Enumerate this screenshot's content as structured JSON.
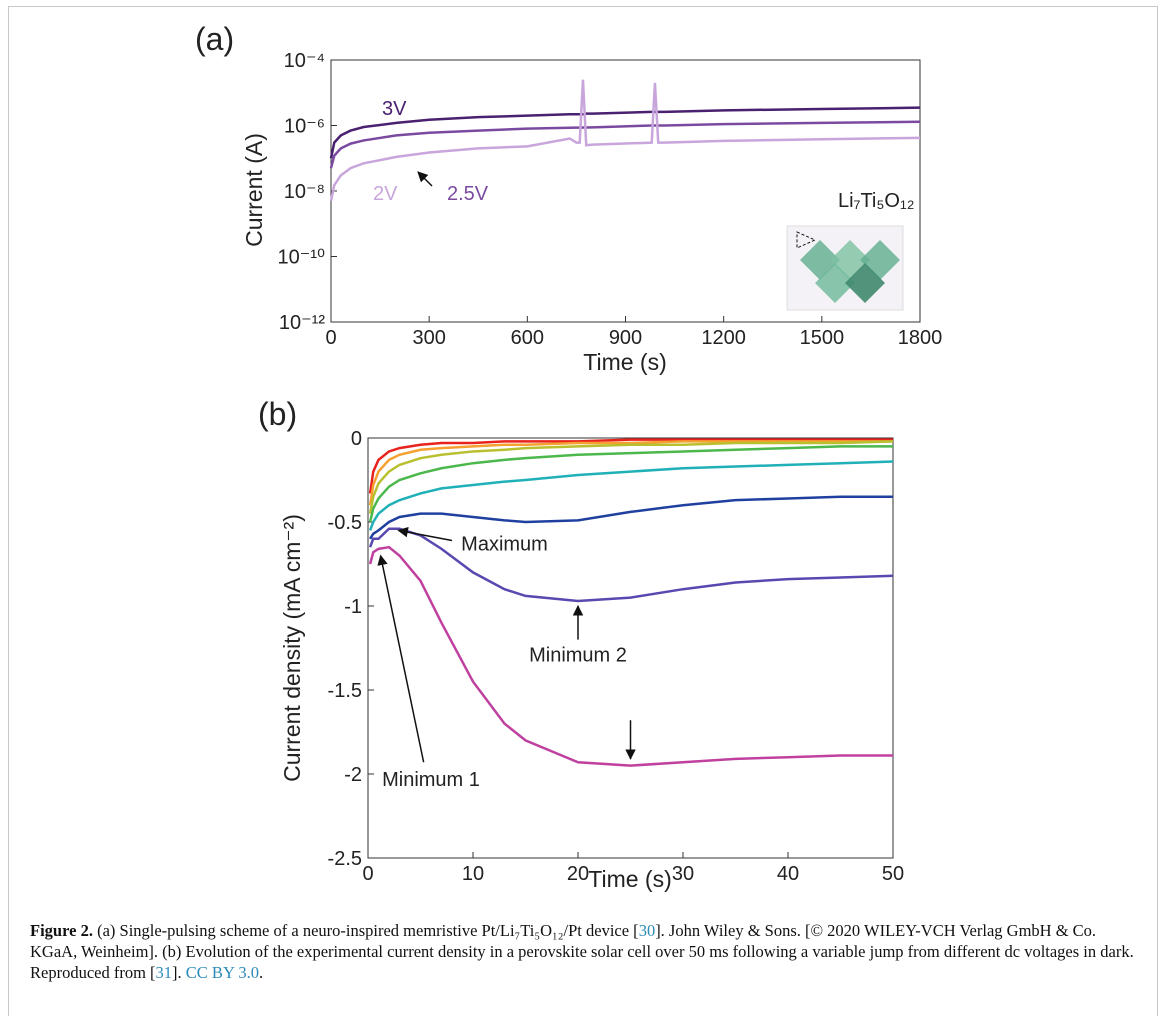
{
  "chart_data": [
    {
      "type": "line",
      "panel_label": "(a)",
      "xlabel": "Time (s)",
      "ylabel": "Current (A)",
      "x": [
        0,
        10,
        30,
        60,
        100,
        200,
        300,
        450,
        600,
        730,
        750,
        760,
        770,
        780,
        800,
        980,
        990,
        1000,
        1020,
        1200,
        1500,
        1800
      ],
      "xlim": [
        0,
        1800
      ],
      "xticks": [
        0,
        300,
        600,
        900,
        1200,
        1500,
        1800
      ],
      "ylim": [
        1e-12,
        0.0001
      ],
      "log_y": true,
      "yticks": [
        {
          "value": 1e-12,
          "label": "10⁻¹²"
        },
        {
          "value": 1e-10,
          "label": "10⁻¹⁰"
        },
        {
          "value": 1e-08,
          "label": "10⁻⁸"
        },
        {
          "value": 1e-06,
          "label": "10⁻⁶"
        },
        {
          "value": 0.0001,
          "label": "10⁻⁴"
        }
      ],
      "series": [
        {
          "name": "3V",
          "color": "#4a2070",
          "values": [
            1e-07,
            3e-07,
            5e-07,
            7e-07,
            9e-07,
            1.2e-06,
            1.5e-06,
            1.8e-06,
            2e-06,
            2.2e-06,
            2.2e-06,
            2.2e-06,
            2.2e-06,
            2.3e-06,
            2.3e-06,
            2.6e-06,
            2.6e-06,
            2.6e-06,
            2.6e-06,
            2.9e-06,
            3.2e-06,
            3.5e-06
          ]
        },
        {
          "name": "2.5V",
          "color": "#7a4aa0",
          "values": [
            5e-08,
            1.2e-07,
            2e-07,
            2.8e-07,
            3.5e-07,
            5e-07,
            6e-07,
            7e-07,
            8e-07,
            8.5e-07,
            8.6e-07,
            8.6e-07,
            8.7e-07,
            8.7e-07,
            8.8e-07,
            1e-06,
            1e-06,
            1e-06,
            1e-06,
            1.1e-06,
            1.2e-06,
            1.3e-06
          ]
        },
        {
          "name": "2V",
          "color": "#c8a6dc",
          "values": [
            5e-09,
            1.5e-08,
            3e-08,
            5e-08,
            7e-08,
            1.1e-07,
            1.5e-07,
            2e-07,
            2.3e-07,
            4e-07,
            3e-07,
            3e-07,
            2.5e-05,
            2.5e-07,
            2.6e-07,
            3e-07,
            2e-05,
            3e-07,
            3e-07,
            3.4e-07,
            3.8e-07,
            4.2e-07
          ]
        }
      ],
      "annotations": [
        "Li₇Ti₅O₁₂"
      ]
    },
    {
      "type": "line",
      "panel_label": "(b)",
      "xlabel": "Time (s)",
      "ylabel": "Current density (mA cm⁻²)",
      "x": [
        0.2,
        0.5,
        1,
        2,
        3,
        5,
        7,
        10,
        13,
        15,
        20,
        25,
        30,
        35,
        40,
        45,
        50
      ],
      "xlim": [
        0,
        50
      ],
      "xticks": [
        0,
        10,
        20,
        30,
        40,
        50
      ],
      "ylim": [
        -2.5,
        0
      ],
      "yticks": [
        0,
        -0.5,
        -1,
        -1.5,
        -2,
        -2.5
      ],
      "series": [
        {
          "color": "#e8231e",
          "values": [
            -0.33,
            -0.2,
            -0.13,
            -0.08,
            -0.06,
            -0.04,
            -0.03,
            -0.03,
            -0.02,
            -0.02,
            -0.02,
            -0.01,
            -0.01,
            -0.01,
            -0.01,
            -0.01,
            -0.01
          ]
        },
        {
          "color": "#f5a030",
          "values": [
            -0.4,
            -0.28,
            -0.2,
            -0.13,
            -0.1,
            -0.07,
            -0.06,
            -0.05,
            -0.04,
            -0.04,
            -0.03,
            -0.03,
            -0.02,
            -0.02,
            -0.02,
            -0.02,
            -0.02
          ]
        },
        {
          "color": "#b8c030",
          "values": [
            -0.45,
            -0.35,
            -0.27,
            -0.2,
            -0.16,
            -0.12,
            -0.1,
            -0.08,
            -0.07,
            -0.06,
            -0.05,
            -0.04,
            -0.04,
            -0.03,
            -0.03,
            -0.03,
            -0.02
          ]
        },
        {
          "color": "#4cb84c",
          "values": [
            -0.5,
            -0.42,
            -0.36,
            -0.29,
            -0.25,
            -0.21,
            -0.18,
            -0.15,
            -0.13,
            -0.12,
            -0.1,
            -0.09,
            -0.08,
            -0.07,
            -0.06,
            -0.05,
            -0.05
          ]
        },
        {
          "color": "#20b0b8",
          "values": [
            -0.55,
            -0.5,
            -0.45,
            -0.4,
            -0.37,
            -0.33,
            -0.3,
            -0.28,
            -0.26,
            -0.25,
            -0.22,
            -0.2,
            -0.18,
            -0.17,
            -0.16,
            -0.15,
            -0.14
          ]
        },
        {
          "color": "#2040a0",
          "values": [
            -0.6,
            -0.57,
            -0.55,
            -0.5,
            -0.47,
            -0.45,
            -0.45,
            -0.47,
            -0.49,
            -0.5,
            -0.49,
            -0.44,
            -0.4,
            -0.37,
            -0.36,
            -0.35,
            -0.35
          ]
        },
        {
          "color": "#5a48b0",
          "values": [
            -0.65,
            -0.6,
            -0.6,
            -0.54,
            -0.54,
            -0.58,
            -0.66,
            -0.8,
            -0.9,
            -0.94,
            -0.97,
            -0.95,
            -0.9,
            -0.86,
            -0.84,
            -0.83,
            -0.82
          ]
        },
        {
          "color": "#c040a0",
          "values": [
            -0.75,
            -0.68,
            -0.66,
            -0.65,
            -0.7,
            -0.85,
            -1.1,
            -1.45,
            -1.7,
            -1.8,
            -1.93,
            -1.95,
            -1.93,
            -1.91,
            -1.9,
            -1.89,
            -1.89
          ]
        }
      ],
      "annotations": [
        "Maximum",
        "Minimum 2",
        "Minimum 1"
      ]
    }
  ],
  "caption": {
    "label": "Figure 2.",
    "parts": [
      "(a) Single-pulsing scheme of a neuro-inspired memristive Pt/Li₇Ti₅O₁₂/Pt device [",
      "30",
      "]. John Wiley & Sons. [© 2020 WILEY-VCH Verlag GmbH & Co. KGaA, Weinheim]. (b) Evolution of the experimental current density in a perovskite solar cell over 50 ms following a variable jump from different dc voltages in dark. Reproduced from [",
      "31",
      "]. ",
      "CC BY 3.0",
      "."
    ]
  }
}
